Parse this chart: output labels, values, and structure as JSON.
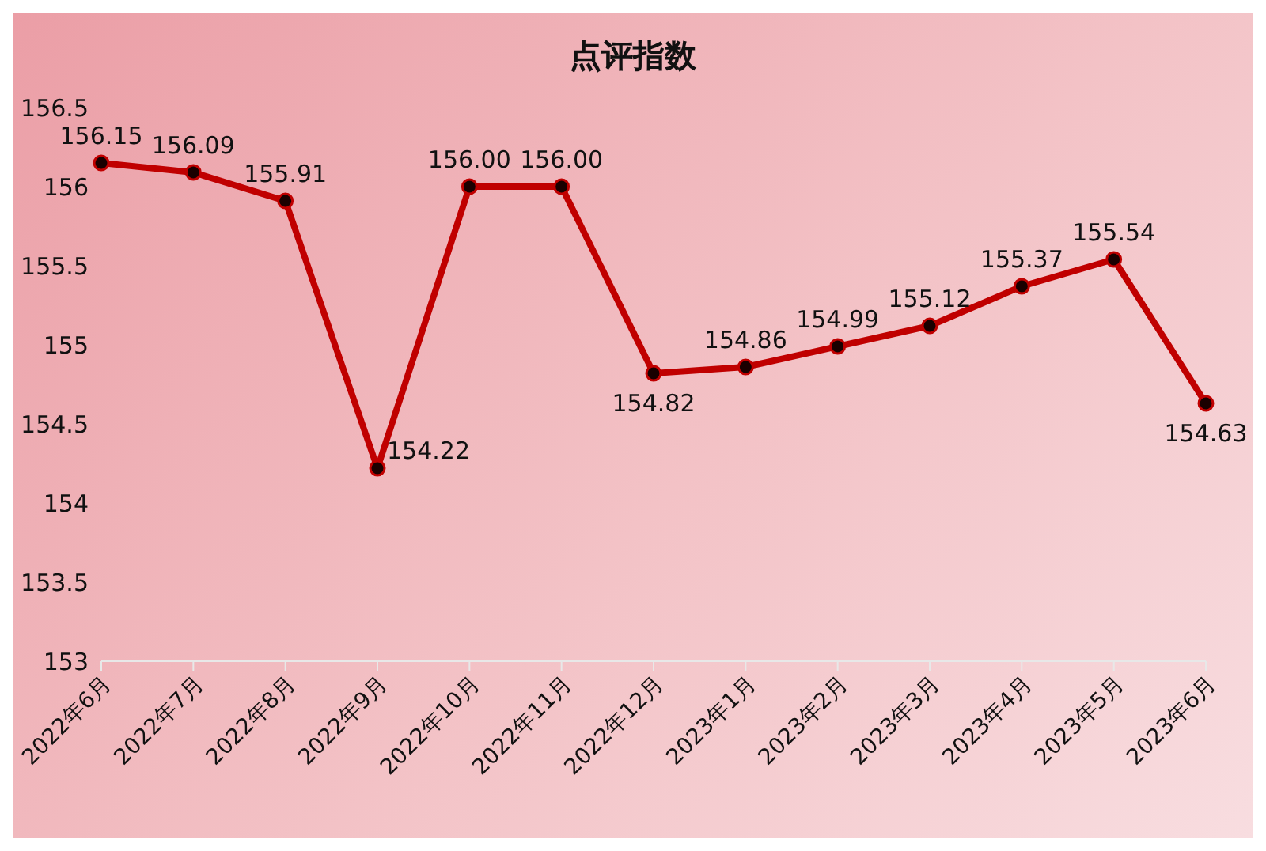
{
  "chart_data": {
    "type": "line",
    "title": "点评指数",
    "categories": [
      "2022年6月",
      "2022年7月",
      "2022年8月",
      "2022年9月",
      "2022年10月",
      "2022年11月",
      "2022年12月",
      "2023年1月",
      "2023年2月",
      "2023年3月",
      "2023年4月",
      "2023年5月",
      "2023年6月"
    ],
    "series": [
      {
        "color": "#c00000",
        "values": [
          156.15,
          156.09,
          155.91,
          154.22,
          156.0,
          156.0,
          154.82,
          154.86,
          154.99,
          155.12,
          155.37,
          155.54,
          154.63
        ],
        "value_labels": [
          "156.15",
          "156.09",
          "155.91",
          "154.22",
          "156.00",
          "156.00",
          "154.82",
          "154.86",
          "154.99",
          "155.12",
          "155.37",
          "155.54",
          "154.63"
        ]
      }
    ],
    "ylim": [
      153,
      156.5
    ],
    "yticks": [
      153,
      153.5,
      154,
      154.5,
      155,
      155.5,
      156,
      156.5
    ],
    "grid": false,
    "legend": false,
    "marker": "circle",
    "line_style": "solid"
  }
}
